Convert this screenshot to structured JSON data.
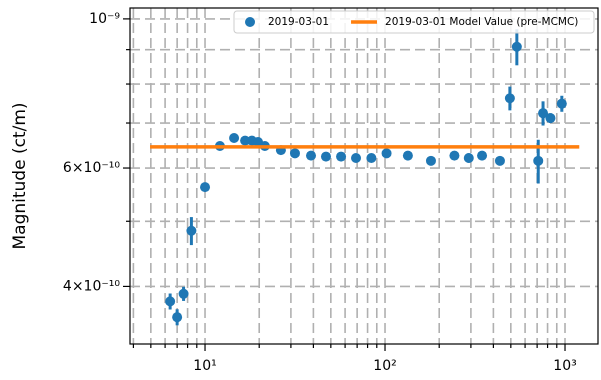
{
  "chart_data": {
    "type": "errorbar",
    "ylabel": "Magnitude (ct/m)",
    "log_x": true,
    "log_y": true,
    "grid": true,
    "legend": "upper right",
    "xlim": [
      3.83,
      1525
    ],
    "ylim": [
      3.284e-10,
      1.038e-09
    ],
    "xticks": [
      {
        "value": 10,
        "label": "10¹"
      },
      {
        "value": 100,
        "label": "10²"
      },
      {
        "value": 1000,
        "label": "10³"
      }
    ],
    "xminorticks": [
      4,
      5,
      6,
      7,
      8,
      9,
      20,
      30,
      40,
      50,
      60,
      70,
      80,
      90,
      200,
      300,
      400,
      500,
      600,
      700,
      800,
      900
    ],
    "yticks": [
      {
        "value": 1e-09,
        "label": "10⁻⁹"
      },
      {
        "value": 6e-10,
        "label": "6×10⁻¹⁰"
      },
      {
        "value": 4e-10,
        "label": "4×10⁻¹⁰"
      }
    ],
    "yminorticks": [
      5e-10,
      7e-10,
      8e-10,
      9e-10
    ],
    "series": [
      {
        "name": "2019-03-01",
        "color": "#1f77b4",
        "x": [
          6.4,
          7.0,
          7.6,
          8.4,
          10,
          12.1,
          14.5,
          16.7,
          18.2,
          19.7,
          21.5,
          26.4,
          31.6,
          38.8,
          47,
          57,
          69,
          84,
          102,
          134,
          180,
          243,
          292,
          346,
          435,
          494,
          540,
          710,
          755,
          830,
          960
        ],
        "values": [
          3.8e-10,
          3.6e-10,
          3.9e-10,
          4.84e-10,
          5.62e-10,
          6.47e-10,
          6.65e-10,
          6.59e-10,
          6.59e-10,
          6.56e-10,
          6.47e-10,
          6.38e-10,
          6.31e-10,
          6.26e-10,
          6.24e-10,
          6.24e-10,
          6.21e-10,
          6.21e-10,
          6.31e-10,
          6.26e-10,
          6.15e-10,
          6.26e-10,
          6.21e-10,
          6.26e-10,
          6.15e-10,
          7.62e-10,
          9.09e-10,
          6.15e-10,
          7.24e-10,
          7.12e-10,
          7.48e-10
        ],
        "errors": [
          1.04e-11,
          9.9e-12,
          9.4e-12,
          2.32e-11,
          7.7e-12,
          8e-12,
          8e-12,
          8e-12,
          8e-12,
          8e-12,
          8e-12,
          8e-12,
          8e-12,
          8e-12,
          8e-12,
          8e-12,
          8e-12,
          8e-12,
          8e-12,
          1e-11,
          8e-12,
          8e-12,
          1e-11,
          1e-11,
          8e-12,
          3.1e-11,
          5.6e-11,
          4.6e-11,
          3e-11,
          1.2e-11,
          2.05e-11
        ]
      },
      {
        "name": "2019-03-01 Model Value (pre-MCMC)",
        "color": "#ff7f0e",
        "kind": "line",
        "x": [
          4.95,
          1200
        ],
        "values": [
          6.45e-10,
          6.45e-10
        ]
      }
    ]
  }
}
